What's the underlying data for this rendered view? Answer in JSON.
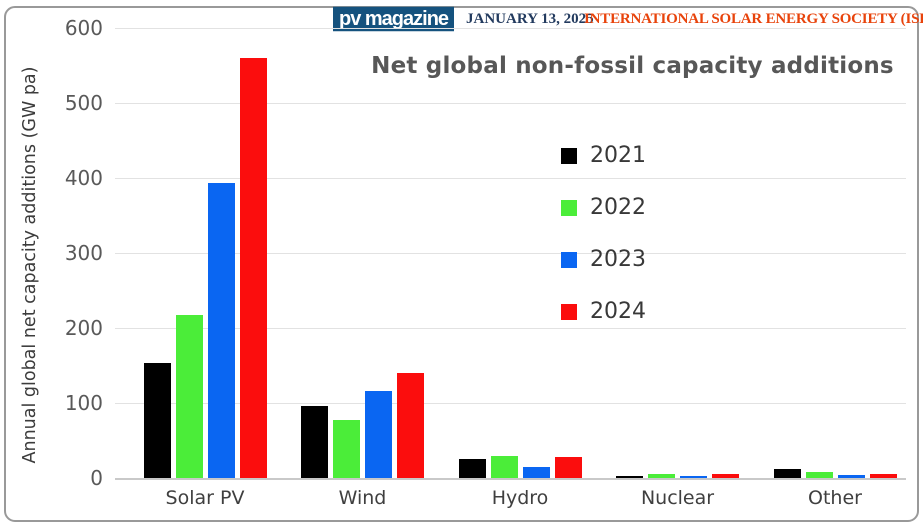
{
  "header": {
    "logo_text": "pv magazine",
    "date": "JANUARY 13, 2025",
    "source": "INTERNATIONAL SOLAR ENERGY SOCIETY (ISES)"
  },
  "chart_data": {
    "type": "bar",
    "title": "Net global non-fossil capacity additions",
    "ylabel": "Annual global net capacity additions (GW pa)",
    "xlabel": "",
    "categories": [
      "Solar PV",
      "Wind",
      "Hydro",
      "Nuclear",
      "Other"
    ],
    "series": [
      {
        "name": "2021",
        "color": "#000000",
        "values": [
          153,
          96,
          26,
          1,
          12
        ]
      },
      {
        "name": "2022",
        "color": "#4bed39",
        "values": [
          218,
          77,
          30,
          5,
          8
        ]
      },
      {
        "name": "2023",
        "color": "#0a66f2",
        "values": [
          393,
          116,
          15,
          2,
          4
        ]
      },
      {
        "name": "2024",
        "color": "#fb0d0d",
        "values": [
          560,
          140,
          28,
          6,
          6
        ]
      }
    ],
    "ylim": [
      0,
      600
    ],
    "yticks": [
      0,
      100,
      200,
      300,
      400,
      500,
      600
    ],
    "grid": true,
    "legend_position": "center-right"
  }
}
